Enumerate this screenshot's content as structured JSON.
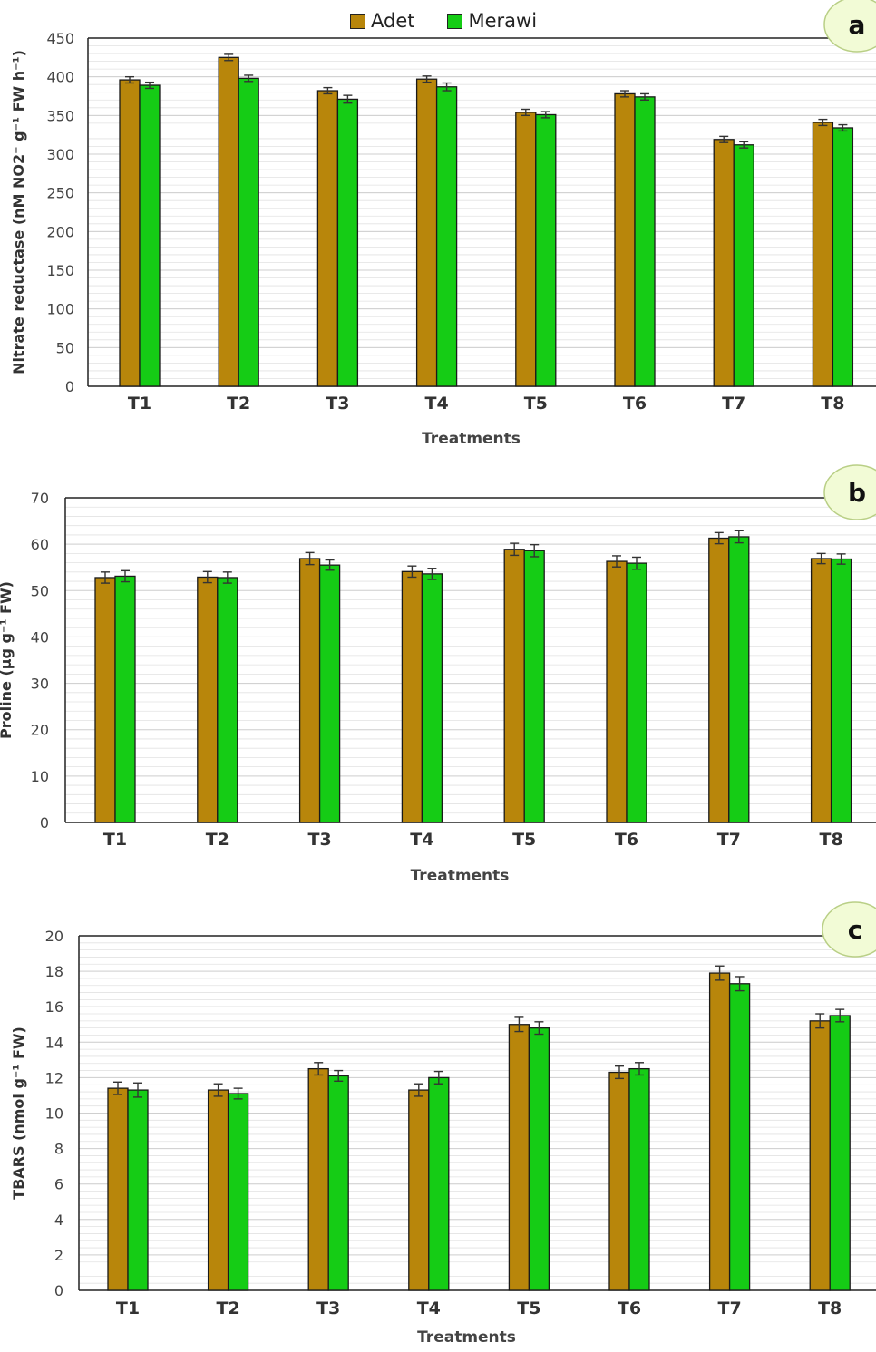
{
  "legend": {
    "series_a": "Adet",
    "series_b": "Merawi"
  },
  "colors": {
    "adet": "#b8860b",
    "merawi": "#15cc15",
    "panel_badge": "#f2fbd6",
    "axis": "#222222",
    "grid": "#cfcfcf"
  },
  "chart_data": [
    {
      "type": "bar",
      "panel_label": "a",
      "ylabel": "Nitrate reductase (nM NO2⁻ g⁻¹ FW h⁻¹)",
      "xlabel": "Treatments",
      "ylim": [
        0,
        450
      ],
      "ytick_step": 50,
      "grid": true,
      "categories": [
        "T1",
        "T2",
        "T3",
        "T4",
        "T5",
        "T6",
        "T7",
        "T8"
      ],
      "series": [
        {
          "name": "Adet",
          "values": [
            396,
            425,
            382,
            397,
            354,
            378,
            319,
            341
          ],
          "errors": [
            4,
            4,
            4,
            4,
            4,
            4,
            4,
            4
          ]
        },
        {
          "name": "Merawi",
          "values": [
            389,
            398,
            371,
            387,
            351,
            374,
            312,
            334
          ],
          "errors": [
            4,
            4,
            5,
            5,
            4,
            4,
            4,
            4
          ]
        }
      ]
    },
    {
      "type": "bar",
      "panel_label": "b",
      "ylabel": "Proline (μg g⁻¹ FW)",
      "xlabel": "Treatments",
      "ylim": [
        0,
        70
      ],
      "ytick_step": 10,
      "grid": true,
      "categories": [
        "T1",
        "T2",
        "T3",
        "T4",
        "T5",
        "T6",
        "T7",
        "T8"
      ],
      "series": [
        {
          "name": "Adet",
          "values": [
            52.8,
            52.9,
            56.9,
            54.1,
            58.9,
            56.3,
            61.3,
            56.9
          ],
          "errors": [
            1.2,
            1.2,
            1.3,
            1.2,
            1.3,
            1.2,
            1.2,
            1.1
          ]
        },
        {
          "name": "Merawi",
          "values": [
            53.1,
            52.8,
            55.5,
            53.6,
            58.6,
            55.9,
            61.6,
            56.8
          ],
          "errors": [
            1.2,
            1.2,
            1.1,
            1.2,
            1.3,
            1.3,
            1.3,
            1.1
          ]
        }
      ]
    },
    {
      "type": "bar",
      "panel_label": "c",
      "ylabel": "TBARS (nmol g⁻¹ FW)",
      "xlabel": "Treatments",
      "ylim": [
        0,
        20
      ],
      "ytick_step": 2,
      "grid": true,
      "categories": [
        "T1",
        "T2",
        "T3",
        "T4",
        "T5",
        "T6",
        "T7",
        "T8"
      ],
      "series": [
        {
          "name": "Adet",
          "values": [
            11.4,
            11.3,
            12.5,
            11.3,
            15.0,
            12.3,
            17.9,
            15.2
          ],
          "errors": [
            0.35,
            0.35,
            0.35,
            0.35,
            0.4,
            0.35,
            0.4,
            0.4
          ]
        },
        {
          "name": "Merawi",
          "values": [
            11.3,
            11.1,
            12.1,
            12.0,
            14.8,
            12.5,
            17.3,
            15.5
          ],
          "errors": [
            0.4,
            0.3,
            0.3,
            0.35,
            0.35,
            0.35,
            0.4,
            0.35
          ]
        }
      ]
    }
  ]
}
